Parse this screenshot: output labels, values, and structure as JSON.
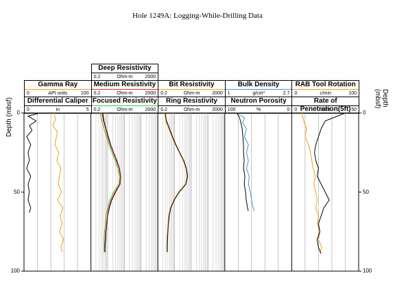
{
  "title": "Hole 1249A: Logging-While-Drilling Data",
  "y_label": "Depth (mbsf)",
  "y_ticks": [
    "0",
    "50",
    "100"
  ],
  "tracks": [
    {
      "headers": [
        {
          "title": "Gamma Ray",
          "min": "0",
          "unit": "API units",
          "max": "100",
          "color": "#f39c12"
        },
        {
          "title": "Differential Caliper",
          "min": "0",
          "unit": "in",
          "max": "5",
          "color": "#000000"
        }
      ]
    },
    {
      "headers": [
        {
          "title": "Deep Resistivity",
          "min": "0.2",
          "unit": "Ohm-m",
          "max": "2000",
          "color": "#000000"
        },
        {
          "title": "Medium Resistivity",
          "min": "0.2",
          "unit": "Ohm-m",
          "max": "2000",
          "color": "#e8232a"
        },
        {
          "title": "Focused Resistivity",
          "min": "0.2",
          "unit": "Ohm-m",
          "max": "2000",
          "color": "#2ecc40"
        }
      ]
    },
    {
      "headers": [
        {
          "title": "Bit Resistivity",
          "min": "0.2",
          "unit": "Ohm-m",
          "max": "2000",
          "color": "#f39c12"
        },
        {
          "title": "Ring Resistivity",
          "min": "0.2",
          "unit": "Ohm-m",
          "max": "2000",
          "color": "#000000"
        }
      ]
    },
    {
      "headers": [
        {
          "title": "Bulk Density",
          "min": "1",
          "unit": "g/cm³",
          "max": "2.7",
          "color": "#3498db"
        },
        {
          "title": "Neutron Porosity",
          "min": "100",
          "unit": "%",
          "max": "0",
          "color": "#000000"
        }
      ]
    },
    {
      "headers": [
        {
          "title": "RAB Tool Rotation",
          "min": "0",
          "unit": "c/min",
          "max": "100",
          "color": "#f39c12"
        },
        {
          "title": "Rate of Penetration(5ft)",
          "min": "0",
          "unit": "m/hr",
          "max": "50",
          "color": "#000000"
        }
      ]
    }
  ],
  "chart_data": {
    "type": "line",
    "title": "Hole 1249A: Logging-While-Drilling Data",
    "ylabel": "Depth (mbsf)",
    "ylim": [
      0,
      100
    ],
    "y_inverted": true,
    "tracks": [
      {
        "name": "Gamma Ray / Differential Caliper",
        "series": [
          {
            "name": "Gamma Ray",
            "unit": "API units",
            "range": [
              0,
              100
            ],
            "scale": "linear",
            "color": "#f39c12",
            "depth": [
              0,
              4,
              8,
              12,
              16,
              20,
              25,
              30,
              35,
              40,
              45,
              50,
              55,
              60,
              65,
              70,
              75,
              80,
              85,
              88
            ],
            "value": [
              45,
              47,
              43,
              50,
              48,
              46,
              52,
              49,
              55,
              53,
              51,
              56,
              50,
              58,
              54,
              57,
              53,
              59,
              55,
              57
            ]
          },
          {
            "name": "Differential Caliper",
            "unit": "in",
            "range": [
              0,
              5
            ],
            "scale": "linear",
            "color": "#000000",
            "depth": [
              0,
              2,
              5,
              8,
              11,
              15,
              20,
              25,
              30,
              35,
              40,
              45,
              50,
              55,
              60,
              63
            ],
            "value": [
              1.2,
              0.3,
              0.9,
              0.4,
              0.6,
              0.2,
              0.5,
              0.3,
              0.4,
              0.2,
              0.5,
              0.3,
              0.4,
              0.3,
              0.5,
              0.4
            ]
          }
        ]
      },
      {
        "name": "Deep / Medium / Focused Resistivity",
        "series": [
          {
            "name": "Deep Resistivity",
            "unit": "Ohm-m",
            "range": [
              0.2,
              2000
            ],
            "scale": "log",
            "color": "#000000",
            "depth": [
              0,
              5,
              10,
              15,
              20,
              25,
              30,
              35,
              40,
              45,
              50,
              55,
              60,
              65,
              70,
              75,
              80,
              85,
              88
            ],
            "value": [
              1.0,
              1.2,
              1.6,
              2.2,
              3.0,
              4.5,
              7.0,
              10,
              12,
              11,
              6.0,
              3.5,
              2.5,
              2.0,
              1.8,
              1.6,
              1.5,
              1.4,
              1.4
            ]
          },
          {
            "name": "Medium Resistivity",
            "unit": "Ohm-m",
            "range": [
              0.2,
              2000
            ],
            "scale": "log",
            "color": "#e8232a",
            "depth": [
              0,
              5,
              10,
              15,
              20,
              25,
              30,
              35,
              40,
              45,
              50,
              55,
              60,
              65,
              70,
              75,
              80,
              85,
              88
            ],
            "value": [
              0.9,
              1.1,
              1.5,
              2.0,
              2.8,
              4.2,
              6.5,
              9.5,
              11.5,
              10.5,
              5.5,
              3.2,
              2.3,
              1.9,
              1.7,
              1.5,
              1.4,
              1.3,
              1.3
            ]
          },
          {
            "name": "Focused Resistivity",
            "unit": "Ohm-m",
            "range": [
              0.2,
              2000
            ],
            "scale": "log",
            "color": "#2ecc40",
            "depth": [
              0,
              5,
              10,
              15,
              20,
              25,
              30,
              35,
              40,
              45,
              50,
              55,
              60,
              65,
              70,
              75,
              80,
              85,
              88
            ],
            "value": [
              0.7,
              0.9,
              1.2,
              1.7,
              2.4,
              3.6,
              5.5,
              8.0,
              10,
              9.5,
              4.5,
              2.7,
              2.0,
              1.6,
              1.5,
              1.3,
              1.2,
              1.2,
              1.2
            ]
          }
        ]
      },
      {
        "name": "Bit / Ring Resistivity",
        "series": [
          {
            "name": "Bit Resistivity",
            "unit": "Ohm-m",
            "range": [
              0.2,
              2000
            ],
            "scale": "log",
            "color": "#f39c12",
            "depth": [
              0,
              5,
              10,
              15,
              20,
              25,
              30,
              35,
              40,
              45,
              50,
              55,
              60,
              65,
              70,
              75,
              80,
              85,
              88
            ],
            "value": [
              0.5,
              0.6,
              0.9,
              1.4,
              2.2,
              3.8,
              6.5,
              9.5,
              11,
              9.0,
              3.5,
              1.8,
              1.1,
              0.9,
              0.8,
              0.75,
              0.7,
              0.7,
              0.7
            ]
          },
          {
            "name": "Ring Resistivity",
            "unit": "Ohm-m",
            "range": [
              0.2,
              2000
            ],
            "scale": "log",
            "color": "#000000",
            "depth": [
              0,
              5,
              10,
              15,
              20,
              25,
              30,
              35,
              40,
              45,
              50,
              55,
              60,
              65,
              70,
              75,
              80,
              85,
              88
            ],
            "value": [
              0.55,
              0.65,
              1.0,
              1.5,
              2.4,
              4.0,
              7.0,
              10,
              12,
              9.5,
              3.8,
              1.9,
              1.2,
              0.95,
              0.85,
              0.8,
              0.75,
              0.72,
              0.72
            ]
          }
        ]
      },
      {
        "name": "Bulk Density / Neutron Porosity",
        "series": [
          {
            "name": "Bulk Density",
            "unit": "g/cm³",
            "range": [
              1,
              2.7
            ],
            "scale": "linear",
            "color": "#3498db",
            "depth": [
              0,
              3,
              6,
              10,
              15,
              20,
              25,
              30,
              35,
              40,
              45,
              50,
              55,
              60,
              62
            ],
            "value": [
              1.3,
              1.5,
              1.45,
              1.55,
              1.5,
              1.6,
              1.55,
              1.6,
              1.55,
              1.62,
              1.6,
              1.65,
              1.68,
              1.72,
              1.75
            ]
          },
          {
            "name": "Neutron Porosity",
            "unit": "%",
            "range": [
              100,
              0
            ],
            "scale": "linear",
            "color": "#000000",
            "depth": [
              0,
              3,
              6,
              10,
              15,
              20,
              25,
              30,
              35,
              40,
              45,
              50,
              55,
              60,
              62
            ],
            "value": [
              82,
              78,
              76,
              74,
              73,
              72,
              72,
              71,
              72,
              70,
              71,
              69,
              68,
              66,
              65
            ]
          }
        ]
      },
      {
        "name": "RAB Tool Rotation / Rate of Penetration",
        "series": [
          {
            "name": "RAB Tool Rotation",
            "unit": "c/min",
            "range": [
              0,
              100
            ],
            "scale": "linear",
            "color": "#f39c12",
            "depth": [
              0,
              5,
              10,
              15,
              20,
              25,
              30,
              35,
              40,
              45,
              50,
              55,
              60,
              65,
              70,
              75,
              80,
              85,
              88
            ],
            "value": [
              15,
              18,
              22,
              20,
              25,
              28,
              30,
              32,
              35,
              33,
              36,
              38,
              36,
              40,
              38,
              42,
              40,
              45,
              42
            ]
          },
          {
            "name": "Rate of Penetration(5ft)",
            "unit": "m/hr",
            "range": [
              0,
              50
            ],
            "scale": "linear",
            "color": "#000000",
            "depth": [
              0,
              5,
              10,
              15,
              20,
              25,
              30,
              35,
              40,
              45,
              50,
              55,
              60,
              65,
              70,
              75,
              80,
              85,
              89
            ],
            "value": [
              40,
              25,
              22,
              20,
              18,
              17,
              18,
              20,
              19,
              22,
              25,
              28,
              24,
              22,
              20,
              21,
              19,
              20,
              22
            ]
          }
        ]
      }
    ]
  }
}
